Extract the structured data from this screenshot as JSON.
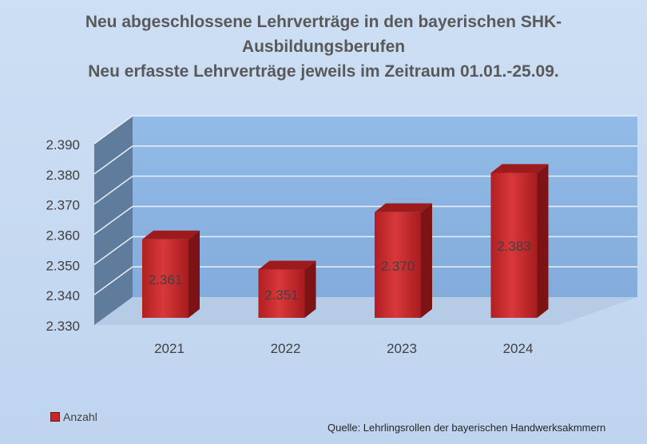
{
  "chart_data": {
    "type": "bar",
    "title_lines": [
      "Neu abgeschlossene Lehrverträge in den bayerischen SHK-",
      "Ausbildungsberufen",
      "Neu erfasste Lehrverträge jeweils im Zeitraum 01.01.-25.09."
    ],
    "categories": [
      "2021",
      "2022",
      "2023",
      "2024"
    ],
    "series": [
      {
        "name": "Anzahl",
        "values": [
          2361,
          2351,
          2370,
          2383
        ],
        "labels": [
          "2.361",
          "2.351",
          "2.370",
          "2.383"
        ],
        "color": "#c0282a"
      }
    ],
    "ylim": [
      2330,
      2390
    ],
    "yticks": [
      2330,
      2340,
      2350,
      2360,
      2370,
      2380,
      2390
    ],
    "ytick_labels": [
      "2.330",
      "2.340",
      "2.350",
      "2.360",
      "2.370",
      "2.380",
      "2.390"
    ],
    "grid": true,
    "legend": "bottom-left",
    "source": "Quelle: Lehrlingsrollen der bayerischen Handwerksakmmern",
    "colors": {
      "wall": "#8cb4e2",
      "side_wall": "#5f7c9c",
      "floor": "#b5cbe6",
      "bar": "#c0282a"
    }
  }
}
